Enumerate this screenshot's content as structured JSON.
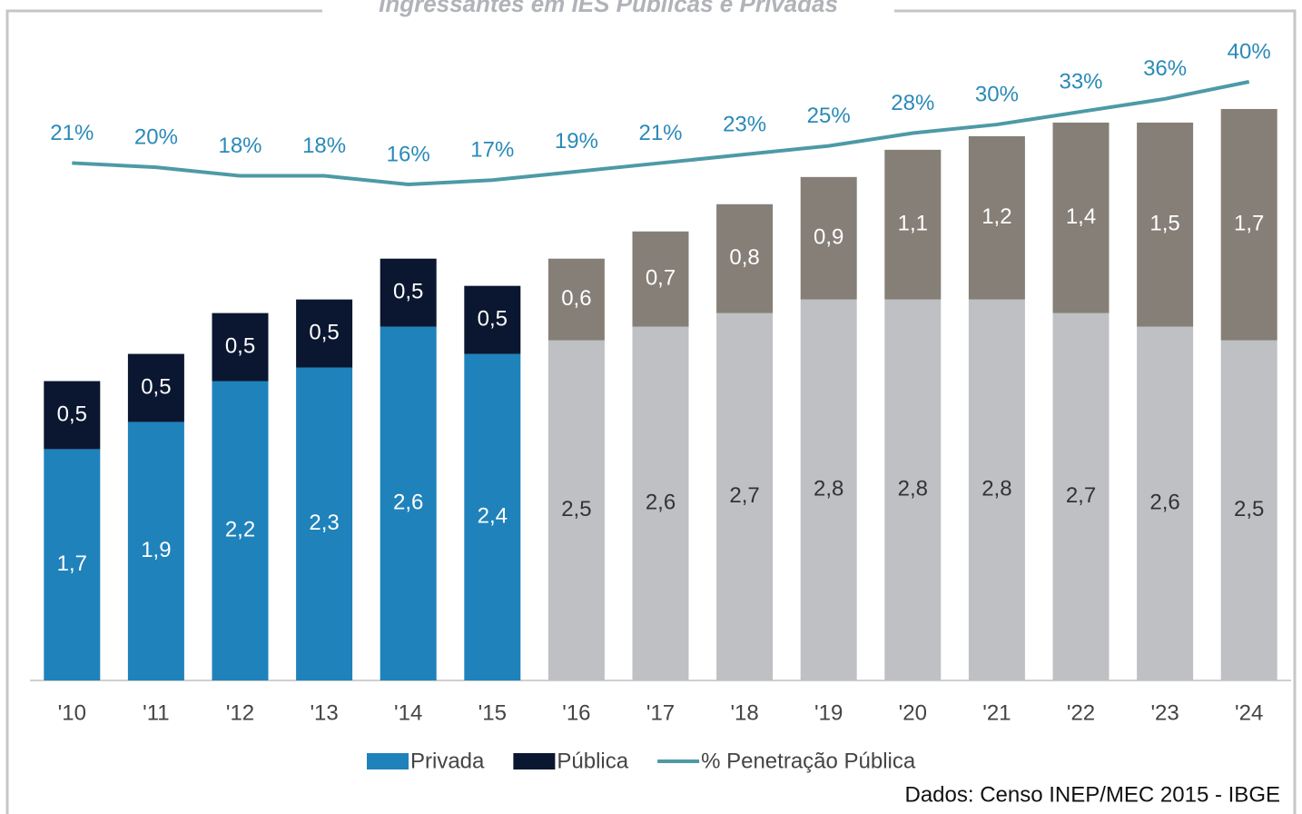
{
  "chart_data": {
    "type": "stacked-bar-line",
    "title": "Ingressantes em IES Públicas e Privadas",
    "source": "Dados: Censo INEP/MEC 2015 - IBGE",
    "categories": [
      "'10",
      "'11",
      "'12",
      "'13",
      "'14",
      "'15",
      "'16",
      "'17",
      "'18",
      "'19",
      "'20",
      "'21",
      "'22",
      "'23",
      "'24"
    ],
    "series": [
      {
        "name": "Privada",
        "color": "#1f82bb",
        "colors": [
          "#1f82bb",
          "#1f82bb",
          "#1f82bb",
          "#1f82bb",
          "#1f82bb",
          "#1f82bb",
          "#bfc0c4",
          "#bfc0c4",
          "#bfc0c4",
          "#bfc0c4",
          "#bfc0c4",
          "#bfc0c4",
          "#bfc0c4",
          "#bfc0c4",
          "#bfc0c4"
        ],
        "values": [
          1.7,
          1.9,
          2.2,
          2.3,
          2.6,
          2.4,
          2.5,
          2.6,
          2.7,
          2.8,
          2.8,
          2.8,
          2.7,
          2.6,
          2.5
        ],
        "value_labels": [
          "1,7",
          "1,9",
          "2,2",
          "2,3",
          "2,6",
          "2,4",
          "2,5",
          "2,6",
          "2,7",
          "2,8",
          "2,8",
          "2,8",
          "2,7",
          "2,6",
          "2,5"
        ]
      },
      {
        "name": "Pública",
        "color": "#0b1730",
        "colors": [
          "#0b1730",
          "#0b1730",
          "#0b1730",
          "#0b1730",
          "#0b1730",
          "#0b1730",
          "#857f78",
          "#857f78",
          "#857f78",
          "#857f78",
          "#857f78",
          "#857f78",
          "#857f78",
          "#857f78",
          "#857f78"
        ],
        "values": [
          0.5,
          0.5,
          0.5,
          0.5,
          0.5,
          0.5,
          0.6,
          0.7,
          0.8,
          0.9,
          1.1,
          1.2,
          1.4,
          1.5,
          1.7
        ],
        "value_labels": [
          "0,5",
          "0,5",
          "0,5",
          "0,5",
          "0,5",
          "0,5",
          "0,6",
          "0,7",
          "0,8",
          "0,9",
          "1,1",
          "1,2",
          "1,4",
          "1,5",
          "1,7"
        ]
      },
      {
        "name": "% Penetração Pública",
        "color": "#4d9aa6",
        "axis": "y2",
        "values": [
          21,
          20,
          18,
          18,
          16,
          17,
          19,
          21,
          23,
          25,
          28,
          30,
          33,
          36,
          40
        ],
        "value_labels": [
          "21%",
          "20%",
          "18%",
          "18%",
          "16%",
          "17%",
          "19%",
          "21%",
          "23%",
          "25%",
          "28%",
          "30%",
          "33%",
          "36%",
          "40%"
        ]
      }
    ],
    "ylim": [
      0,
      4.4
    ],
    "y2lim": [
      -100,
      40
    ]
  }
}
